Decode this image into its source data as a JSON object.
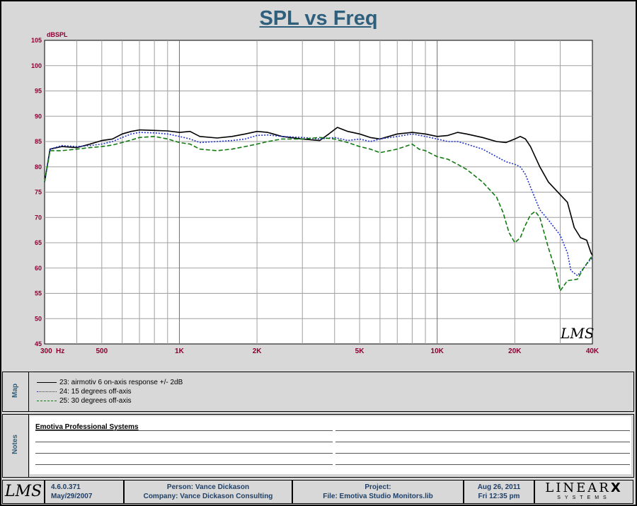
{
  "chart_data": {
    "type": "line",
    "title": "SPL vs Freq",
    "ylabel": "dBSPL",
    "xscale": "log",
    "xlim": [
      300,
      40000
    ],
    "ylim": [
      45,
      105
    ],
    "grid": true,
    "x_tick_labels": [
      "300",
      "Hz",
      "500",
      "1K",
      "2K",
      "5K",
      "10K",
      "20K",
      "40K"
    ],
    "y_tick_labels": [
      "105",
      "100",
      "95",
      "90",
      "85",
      "80",
      "75",
      "70",
      "65",
      "60",
      "55",
      "50",
      "45"
    ],
    "series": [
      {
        "name": "23: airmotiv 6 on-axis response +/- 2dB",
        "color": "#000000",
        "style": "solid",
        "points": [
          [
            300,
            77
          ],
          [
            315,
            83.5
          ],
          [
            350,
            84
          ],
          [
            400,
            83.8
          ],
          [
            450,
            84.5
          ],
          [
            500,
            85.2
          ],
          [
            550,
            85.5
          ],
          [
            600,
            86.5
          ],
          [
            650,
            87
          ],
          [
            700,
            87.3
          ],
          [
            800,
            87.2
          ],
          [
            900,
            87.1
          ],
          [
            1000,
            86.8
          ],
          [
            1100,
            87
          ],
          [
            1200,
            86
          ],
          [
            1400,
            85.7
          ],
          [
            1600,
            86
          ],
          [
            1800,
            86.5
          ],
          [
            2000,
            87
          ],
          [
            2200,
            86.8
          ],
          [
            2500,
            86
          ],
          [
            3000,
            85.5
          ],
          [
            3500,
            85.2
          ],
          [
            3800,
            86.5
          ],
          [
            4100,
            87.8
          ],
          [
            4500,
            87
          ],
          [
            5000,
            86.5
          ],
          [
            5500,
            85.8
          ],
          [
            6000,
            85.5
          ],
          [
            7000,
            86.5
          ],
          [
            8000,
            86.8
          ],
          [
            9000,
            86.5
          ],
          [
            10000,
            86
          ],
          [
            11000,
            86.2
          ],
          [
            12000,
            86.8
          ],
          [
            13000,
            86.5
          ],
          [
            15000,
            85.8
          ],
          [
            17000,
            85
          ],
          [
            18500,
            84.8
          ],
          [
            20000,
            85.5
          ],
          [
            21000,
            86
          ],
          [
            22000,
            85.5
          ],
          [
            23000,
            84
          ],
          [
            25000,
            80
          ],
          [
            27000,
            77
          ],
          [
            30000,
            74.5
          ],
          [
            32000,
            73
          ],
          [
            34000,
            68
          ],
          [
            36000,
            66
          ],
          [
            38000,
            65.5
          ],
          [
            39500,
            63
          ],
          [
            40000,
            62.5
          ]
        ]
      },
      {
        "name": "24: 15 degrees off-axis",
        "color": "#2233cc",
        "style": "dotted",
        "points": [
          [
            300,
            77
          ],
          [
            315,
            83.5
          ],
          [
            350,
            84.2
          ],
          [
            400,
            84
          ],
          [
            450,
            84.2
          ],
          [
            500,
            84.5
          ],
          [
            550,
            85
          ],
          [
            600,
            85.8
          ],
          [
            650,
            86.5
          ],
          [
            700,
            86.8
          ],
          [
            800,
            86.7
          ],
          [
            900,
            86.5
          ],
          [
            1000,
            86
          ],
          [
            1100,
            85.5
          ],
          [
            1200,
            84.8
          ],
          [
            1400,
            85
          ],
          [
            1600,
            85.2
          ],
          [
            1800,
            85.5
          ],
          [
            2000,
            86.2
          ],
          [
            2200,
            86.3
          ],
          [
            2500,
            86
          ],
          [
            3000,
            85.8
          ],
          [
            3500,
            85.5
          ],
          [
            4000,
            85.8
          ],
          [
            4500,
            85.2
          ],
          [
            5000,
            85.5
          ],
          [
            5500,
            85
          ],
          [
            6000,
            85.5
          ],
          [
            7000,
            86
          ],
          [
            8000,
            86.5
          ],
          [
            9000,
            86
          ],
          [
            10000,
            85.5
          ],
          [
            11000,
            85
          ],
          [
            12000,
            85
          ],
          [
            13000,
            84.5
          ],
          [
            15000,
            83.5
          ],
          [
            17000,
            82
          ],
          [
            18500,
            81
          ],
          [
            20000,
            80.5
          ],
          [
            21000,
            80
          ],
          [
            22000,
            78.5
          ],
          [
            23000,
            76
          ],
          [
            25000,
            71.5
          ],
          [
            27000,
            69.5
          ],
          [
            30000,
            66.5
          ],
          [
            32000,
            63
          ],
          [
            33000,
            59.5
          ],
          [
            35000,
            58.5
          ],
          [
            37000,
            60
          ],
          [
            39000,
            61.5
          ],
          [
            40000,
            62
          ]
        ]
      },
      {
        "name": "25: 30 degrees off-axis",
        "color": "#117a11",
        "style": "dashed",
        "points": [
          [
            300,
            77
          ],
          [
            315,
            83.2
          ],
          [
            350,
            83.2
          ],
          [
            400,
            83.5
          ],
          [
            450,
            83.8
          ],
          [
            500,
            84
          ],
          [
            550,
            84.3
          ],
          [
            600,
            84.8
          ],
          [
            650,
            85.3
          ],
          [
            700,
            85.8
          ],
          [
            800,
            86
          ],
          [
            900,
            85.5
          ],
          [
            1000,
            84.8
          ],
          [
            1100,
            84.5
          ],
          [
            1200,
            83.5
          ],
          [
            1400,
            83.2
          ],
          [
            1600,
            83.5
          ],
          [
            1800,
            84
          ],
          [
            2000,
            84.5
          ],
          [
            2200,
            85
          ],
          [
            2500,
            85.5
          ],
          [
            3000,
            85.5
          ],
          [
            3500,
            85.8
          ],
          [
            4000,
            85.5
          ],
          [
            4500,
            84.8
          ],
          [
            5000,
            84
          ],
          [
            5500,
            83.5
          ],
          [
            6000,
            82.8
          ],
          [
            7000,
            83.5
          ],
          [
            8000,
            84.5
          ],
          [
            8500,
            83.5
          ],
          [
            9000,
            83.2
          ],
          [
            10000,
            82
          ],
          [
            11000,
            81.5
          ],
          [
            12000,
            80.5
          ],
          [
            13000,
            79.5
          ],
          [
            15000,
            77
          ],
          [
            17000,
            74
          ],
          [
            18000,
            71
          ],
          [
            19000,
            67
          ],
          [
            20000,
            65
          ],
          [
            21000,
            66
          ],
          [
            22000,
            68.5
          ],
          [
            23000,
            70.5
          ],
          [
            24000,
            71.2
          ],
          [
            25000,
            70
          ],
          [
            27000,
            64
          ],
          [
            29000,
            59
          ],
          [
            30000,
            55.5
          ],
          [
            32000,
            57.5
          ],
          [
            35000,
            57.8
          ],
          [
            37000,
            60
          ],
          [
            40000,
            62.5
          ]
        ]
      }
    ],
    "watermark": "LMS"
  },
  "map_panel": {
    "label": "Map"
  },
  "notes_panel": {
    "label": "Notes",
    "company_line": "Emotiva Professional Systems"
  },
  "footer": {
    "logo_text": "LMS",
    "version": "4.6.0.371",
    "version_date": "May/29/2007",
    "person": "Person: Vance Dickason",
    "company": "Company: Vance Dickason Consulting",
    "project_label": "Project:",
    "file": "File: Emotiva Studio Monitors.lib",
    "date": "Aug 26, 2011",
    "time": "Fri 12:35 pm",
    "brand": "LINEAR",
    "brand_mark": "X",
    "brand_sub": "SYSTEMS"
  }
}
